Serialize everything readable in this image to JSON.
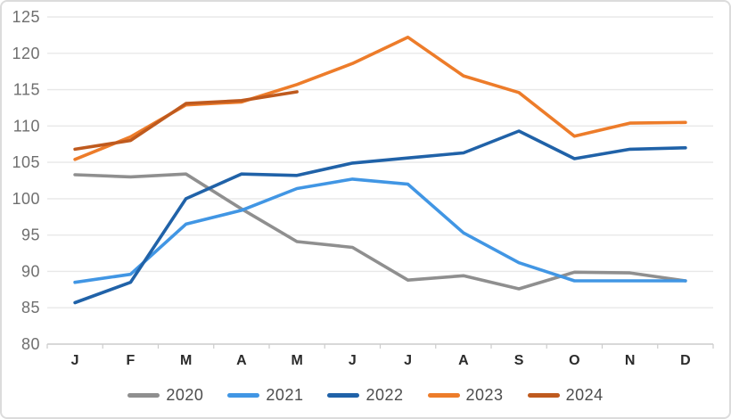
{
  "chart_data": {
    "type": "line",
    "title": "",
    "xlabel": "",
    "ylabel": "",
    "categories": [
      "J",
      "F",
      "M",
      "A",
      "M",
      "J",
      "J",
      "A",
      "S",
      "O",
      "N",
      "D"
    ],
    "y_ticks": [
      125,
      120,
      115,
      110,
      105,
      100,
      95,
      90,
      85,
      80
    ],
    "ylim": [
      80,
      125
    ],
    "grid": true,
    "legend_position": "bottom",
    "series": [
      {
        "name": "2020",
        "color": "#8f8f8f",
        "values": [
          103.3,
          103.0,
          103.4,
          98.6,
          94.1,
          93.3,
          88.8,
          89.4,
          87.6,
          89.9,
          89.8,
          88.7
        ]
      },
      {
        "name": "2021",
        "color": "#4196e4",
        "values": [
          88.5,
          89.6,
          96.5,
          98.4,
          101.4,
          102.7,
          102.0,
          95.3,
          91.2,
          88.7,
          88.7,
          88.7
        ]
      },
      {
        "name": "2022",
        "color": "#2062a8",
        "values": [
          85.7,
          88.5,
          100.0,
          103.4,
          103.2,
          104.9,
          105.6,
          106.3,
          109.3,
          105.5,
          106.8,
          107.0
        ]
      },
      {
        "name": "2023",
        "color": "#ed7c2a",
        "values": [
          105.4,
          108.5,
          112.9,
          113.3,
          115.7,
          118.6,
          122.2,
          116.9,
          114.6,
          108.6,
          110.4,
          110.5
        ]
      },
      {
        "name": "2024",
        "color": "#bf5a1e",
        "values": [
          106.8,
          108.0,
          113.1,
          113.5,
          114.7,
          null,
          null,
          null,
          null,
          null,
          null,
          null
        ]
      }
    ]
  }
}
